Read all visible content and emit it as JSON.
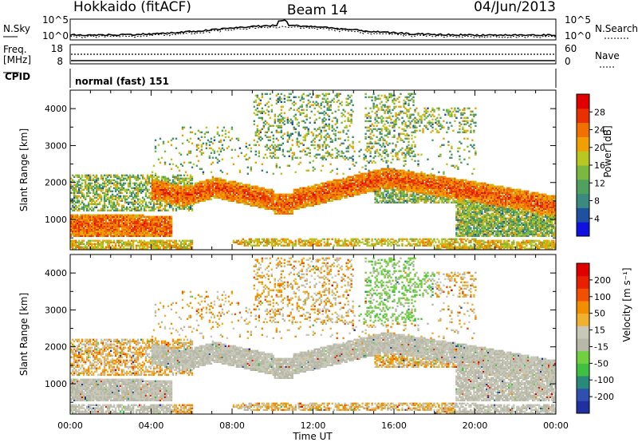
{
  "header": {
    "station": "Hokkaido (fitACF)",
    "beam": "Beam 14",
    "date": "04/Jun/2013"
  },
  "noise_panel": {
    "left_label": "N.Sky",
    "right_label": "N.Search",
    "left_ticks": [
      "10^5",
      "10^0"
    ],
    "right_ticks": [
      "10^5",
      "10^0"
    ]
  },
  "freq_panel": {
    "left_label_line1": "Freq.",
    "left_label_line2": "[MHz]",
    "right_label": "Nave",
    "left_ticks": [
      "18",
      "8"
    ],
    "right_ticks": [
      "60",
      "0"
    ]
  },
  "cpid_panel": {
    "label": "CPID",
    "mode_text": "normal (fast) 151"
  },
  "chart_data": [
    {
      "type": "heatmap",
      "name": "power",
      "ylabel": "Slant Range [km]",
      "y_ticks": [
        "4000",
        "3000",
        "2000",
        "1000"
      ],
      "y_range_km": [
        180,
        4500
      ],
      "colorbar_label": "Power [dB]",
      "colorbar_ticks": [
        "28",
        "24",
        "20",
        "16",
        "12",
        "8",
        "4"
      ],
      "colorbar_range": [
        0,
        32
      ],
      "colors": [
        "#1010e0",
        "#2050a0",
        "#3a8a80",
        "#50a060",
        "#7ab840",
        "#b8c820",
        "#f0a000",
        "#f07000",
        "#e83000",
        "#e00000"
      ]
    },
    {
      "type": "heatmap",
      "name": "velocity",
      "ylabel": "Slant Range [km]",
      "y_ticks": [
        "4000",
        "3000",
        "2000",
        "1000"
      ],
      "y_range_km": [
        180,
        4500
      ],
      "colorbar_label": "Velocity [m s⁻¹]",
      "colorbar_ticks": [
        "200",
        "100",
        "50",
        "15",
        "-15",
        "-50",
        "-100",
        "-200"
      ],
      "colorbar_range": [
        -250,
        250
      ],
      "colors": [
        "#2030a0",
        "#3050b0",
        "#2a8a7a",
        "#40c040",
        "#70d040",
        "#b8b8a8",
        "#c8c8b8",
        "#f0b030",
        "#f09000",
        "#f05000",
        "#e82000",
        "#e00000"
      ]
    }
  ],
  "x_axis": {
    "label": "Time UT",
    "ticks": [
      "00:00",
      "04:00",
      "08:00",
      "12:00",
      "16:00",
      "20:00",
      "00:00"
    ]
  }
}
